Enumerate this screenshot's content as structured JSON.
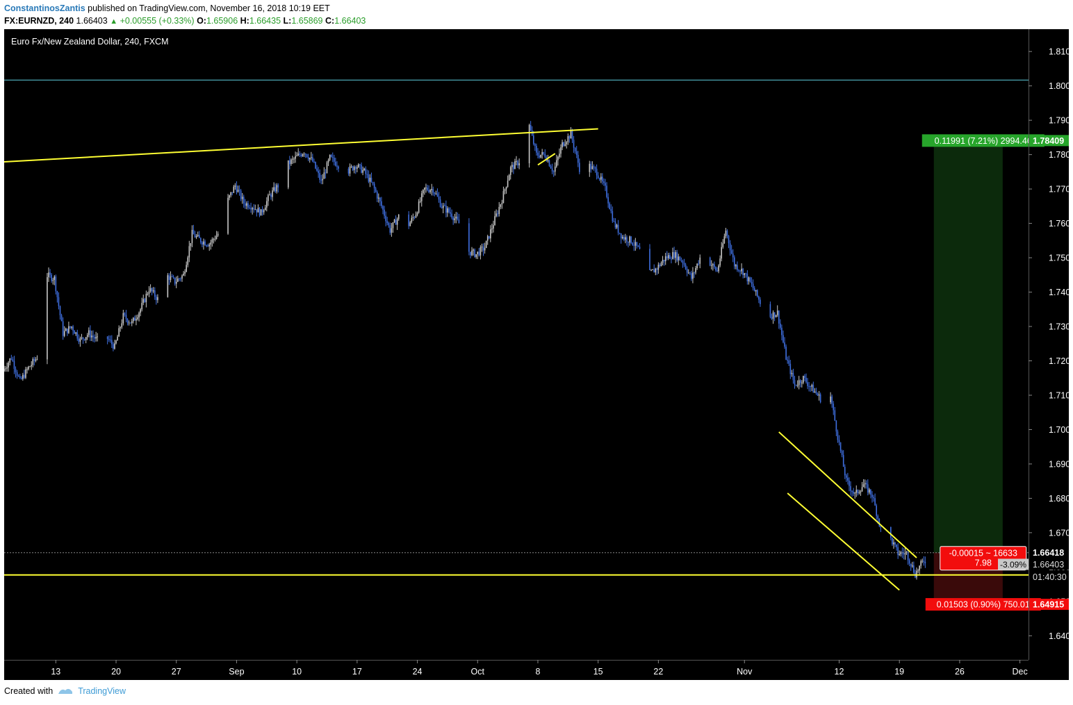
{
  "header": {
    "author": "ConstantinosZantis",
    "published_text": "published on TradingView.com, November 16, 2018 10:19 EET"
  },
  "quote": {
    "symbol": "FX:EURNZD, 240",
    "last": "1.66403",
    "change": "+0.00555 (+0.33%)",
    "o_label": "O:",
    "o": "1.65906",
    "h_label": "H:",
    "h": "1.66435",
    "l_label": "L:",
    "l": "1.65869",
    "c_label": "C:",
    "c": "1.66403"
  },
  "footer": {
    "created_with": "Created with",
    "brand": "TradingView"
  },
  "colors": {
    "background": "#000000",
    "candle_up": "#c8c8c8",
    "candle_down": "#3f6fe0",
    "trendline": "#ffff33",
    "resistance_line": "#5fd0e0",
    "profit_zone": "#0c2a0c",
    "loss_zone": "#3a0a0a",
    "profit_label": "#27a52b",
    "loss_label": "#f20d0d"
  },
  "chart_data": {
    "type": "candlestick",
    "title": "Euro Fx/New Zealand Dollar, 240, FXCM",
    "xlabel": "",
    "ylabel": "",
    "ylim": [
      1.633,
      1.8165
    ],
    "xlim": [
      "2018-08-07",
      "2018-12-04"
    ],
    "y_ticks": [
      "1.64000",
      "1.65000",
      "1.66000",
      "1.67000",
      "1.68000",
      "1.69000",
      "1.70000",
      "1.71000",
      "1.72000",
      "1.73000",
      "1.74000",
      "1.75000",
      "1.76000",
      "1.77000",
      "1.78000",
      "1.79000",
      "1.80000",
      "1.81000"
    ],
    "x_ticks": [
      {
        "label": "13",
        "date": "2018-08-13"
      },
      {
        "label": "20",
        "date": "2018-08-20"
      },
      {
        "label": "27",
        "date": "2018-08-27"
      },
      {
        "label": "Sep",
        "date": "2018-09-03"
      },
      {
        "label": "10",
        "date": "2018-09-10"
      },
      {
        "label": "17",
        "date": "2018-09-17"
      },
      {
        "label": "24",
        "date": "2018-09-24"
      },
      {
        "label": "Oct",
        "date": "2018-10-01"
      },
      {
        "label": "8",
        "date": "2018-10-08"
      },
      {
        "label": "15",
        "date": "2018-10-15"
      },
      {
        "label": "22",
        "date": "2018-10-22"
      },
      {
        "label": "Nov",
        "date": "2018-11-01"
      },
      {
        "label": "12",
        "date": "2018-11-12"
      },
      {
        "label": "19",
        "date": "2018-11-19"
      },
      {
        "label": "26",
        "date": "2018-11-26"
      },
      {
        "label": "Dec",
        "date": "2018-12-03"
      }
    ],
    "price_path": [
      [
        "2018-08-07",
        1.717
      ],
      [
        "2018-08-08",
        1.721
      ],
      [
        "2018-08-09",
        1.714
      ],
      [
        "2018-08-10",
        1.718
      ],
      [
        "2018-08-11",
        1.721
      ],
      [
        "2018-08-12",
        1.745
      ],
      [
        "2018-08-13",
        1.744
      ],
      [
        "2018-08-14",
        1.728
      ],
      [
        "2018-08-15",
        1.73
      ],
      [
        "2018-08-16",
        1.726
      ],
      [
        "2018-08-17",
        1.728
      ],
      [
        "2018-08-18",
        1.726
      ],
      [
        "2018-08-19",
        1.727
      ],
      [
        "2018-08-20",
        1.724
      ],
      [
        "2018-08-21",
        1.733
      ],
      [
        "2018-08-22",
        1.731
      ],
      [
        "2018-08-23",
        1.735
      ],
      [
        "2018-08-24",
        1.741
      ],
      [
        "2018-08-25",
        1.738
      ],
      [
        "2018-08-26",
        1.745
      ],
      [
        "2018-08-27",
        1.743
      ],
      [
        "2018-08-28",
        1.745
      ],
      [
        "2018-08-29",
        1.757
      ],
      [
        "2018-08-30",
        1.755
      ],
      [
        "2018-08-31",
        1.754
      ],
      [
        "2018-09-01",
        1.757
      ],
      [
        "2018-09-02",
        1.766
      ],
      [
        "2018-09-03",
        1.771
      ],
      [
        "2018-09-04",
        1.766
      ],
      [
        "2018-09-05",
        1.765
      ],
      [
        "2018-09-06",
        1.763
      ],
      [
        "2018-09-07",
        1.768
      ],
      [
        "2018-09-08",
        1.771
      ],
      [
        "2018-09-09",
        1.777
      ],
      [
        "2018-09-10",
        1.779
      ],
      [
        "2018-09-11",
        1.781
      ],
      [
        "2018-09-12",
        1.778
      ],
      [
        "2018-09-13",
        1.772
      ],
      [
        "2018-09-14",
        1.779
      ],
      [
        "2018-09-15",
        1.777
      ],
      [
        "2018-09-16",
        1.775
      ],
      [
        "2018-09-17",
        1.777
      ],
      [
        "2018-09-18",
        1.775
      ],
      [
        "2018-09-19",
        1.771
      ],
      [
        "2018-09-20",
        1.765
      ],
      [
        "2018-09-21",
        1.758
      ],
      [
        "2018-09-22",
        1.762
      ],
      [
        "2018-09-23",
        1.759
      ],
      [
        "2018-09-24",
        1.763
      ],
      [
        "2018-09-25",
        1.77
      ],
      [
        "2018-09-26",
        1.77
      ],
      [
        "2018-09-27",
        1.765
      ],
      [
        "2018-09-28",
        1.763
      ],
      [
        "2018-09-29",
        1.76
      ],
      [
        "2018-09-30",
        1.752
      ],
      [
        "2018-10-01",
        1.751
      ],
      [
        "2018-10-02",
        1.753
      ],
      [
        "2018-10-03",
        1.76
      ],
      [
        "2018-10-04",
        1.767
      ],
      [
        "2018-10-05",
        1.776
      ],
      [
        "2018-10-06",
        1.778
      ],
      [
        "2018-10-07",
        1.79
      ],
      [
        "2018-10-08",
        1.78
      ],
      [
        "2018-10-09",
        1.78
      ],
      [
        "2018-10-10",
        1.775
      ],
      [
        "2018-10-11",
        1.783
      ],
      [
        "2018-10-12",
        1.786
      ],
      [
        "2018-10-13",
        1.776
      ],
      [
        "2018-10-14",
        1.777
      ],
      [
        "2018-10-15",
        1.775
      ],
      [
        "2018-10-16",
        1.77
      ],
      [
        "2018-10-17",
        1.76
      ],
      [
        "2018-10-18",
        1.756
      ],
      [
        "2018-10-19",
        1.755
      ],
      [
        "2018-10-20",
        1.752
      ],
      [
        "2018-10-21",
        1.745
      ],
      [
        "2018-10-22",
        1.747
      ],
      [
        "2018-10-23",
        1.75
      ],
      [
        "2018-10-24",
        1.751
      ],
      [
        "2018-10-25",
        1.749
      ],
      [
        "2018-10-26",
        1.744
      ],
      [
        "2018-10-27",
        1.75
      ],
      [
        "2018-10-28",
        1.749
      ],
      [
        "2018-10-29",
        1.746
      ],
      [
        "2018-10-30",
        1.758
      ],
      [
        "2018-10-31",
        1.748
      ],
      [
        "2018-11-01",
        1.746
      ],
      [
        "2018-11-02",
        1.742
      ],
      [
        "2018-11-03",
        1.737
      ],
      [
        "2018-11-04",
        1.733
      ],
      [
        "2018-11-05",
        1.734
      ],
      [
        "2018-11-06",
        1.721
      ],
      [
        "2018-11-07",
        1.713
      ],
      [
        "2018-11-08",
        1.715
      ],
      [
        "2018-11-09",
        1.712
      ],
      [
        "2018-11-10",
        1.709
      ],
      [
        "2018-11-11",
        1.712
      ],
      [
        "2018-11-12",
        1.698
      ],
      [
        "2018-11-13",
        1.685
      ],
      [
        "2018-11-14",
        1.681
      ],
      [
        "2018-11-15",
        1.684
      ],
      [
        "2018-11-16",
        1.681
      ],
      [
        "2018-11-17",
        1.671
      ],
      [
        "2018-11-18",
        1.669
      ],
      [
        "2018-11-19",
        1.664
      ],
      [
        "2018-11-20",
        1.664
      ],
      [
        "2018-11-21",
        1.658
      ],
      [
        "2018-11-22",
        1.662
      ]
    ],
    "drawings": {
      "ascending_trendline": [
        [
          "2018-08-07",
          1.7779
        ],
        [
          "2018-10-15",
          1.7875
        ]
      ],
      "small_flag_line": [
        [
          "2018-10-08",
          1.777
        ],
        [
          "2018-10-10",
          1.7803
        ]
      ],
      "channel_upper": [
        [
          "2018-11-05",
          1.6993
        ],
        [
          "2018-11-21",
          1.6627
        ]
      ],
      "channel_lower": [
        [
          "2018-11-06",
          1.6815
        ],
        [
          "2018-11-19",
          1.6533
        ]
      ],
      "support_line": 1.6577,
      "resistance_line": 1.8017,
      "current_price_line": 1.66418
    },
    "position": {
      "start": "2018-11-23",
      "end": "2018-12-01",
      "entry": 1.66418,
      "target": 1.78409,
      "stop": 1.64915,
      "target_label": "0.11991 (7.21%) 2994.46",
      "stop_label": "0.01503 (0.90%) 750.01",
      "entry_label_1": "-0.00015 ~ 16633",
      "entry_label_2": "7.98"
    },
    "axis_labels": {
      "target_price": "1.78409",
      "entry_price": "1.66418",
      "last_price": "1.66403",
      "percent": "-3.09%",
      "countdown": "01:40:30",
      "stop_price": "1.64915"
    }
  }
}
